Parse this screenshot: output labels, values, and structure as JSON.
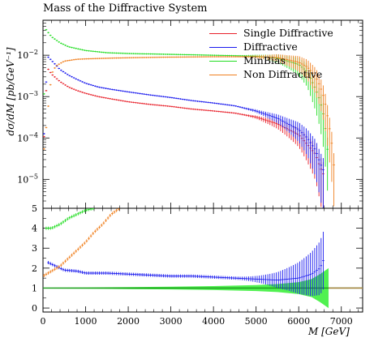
{
  "chart_data": [
    {
      "type": "line",
      "panel": "main",
      "title": "Mass of the Diffractive System",
      "ylabel": "dσ/dM [pb/GeV⁻¹]",
      "yscale": "log",
      "ylim": [
        2e-06,
        0.07
      ],
      "xlim": [
        0,
        7500
      ],
      "yticks": [
        {
          "v": 1e-05,
          "b": "10",
          "e": "−5"
        },
        {
          "v": 0.0001,
          "b": "10",
          "e": "−4"
        },
        {
          "v": 0.001,
          "b": "10",
          "e": "−3"
        },
        {
          "v": 0.01,
          "b": "10",
          "e": "−2"
        }
      ],
      "legend": {
        "position": "top-right"
      },
      "series": [
        {
          "name": "Single Diffractive",
          "color": "#e8202a",
          "x": [
            0,
            100,
            200,
            400,
            600,
            800,
            1000,
            1300,
            1600,
            2000,
            2500,
            3000,
            3500,
            4000,
            4500,
            5000,
            5500,
            6000,
            6200,
            6400,
            6500,
            6600
          ],
          "y": [
            3e-05,
            0.005,
            0.0035,
            0.0023,
            0.0017,
            0.0014,
            0.0012,
            0.001,
            0.00088,
            0.00075,
            0.00065,
            0.00058,
            0.0005,
            0.00045,
            0.0004,
            0.00032,
            0.00022,
            0.00012,
            7e-05,
            4e-05,
            2e-05,
            1.2e-05
          ]
        },
        {
          "name": "Diffractive",
          "color": "#1a1aee",
          "x": [
            0,
            100,
            200,
            400,
            600,
            800,
            1000,
            1300,
            1600,
            2000,
            2500,
            3000,
            3500,
            4000,
            4500,
            5000,
            5500,
            6000,
            6200,
            6400,
            6500,
            6600
          ],
          "y": [
            3e-05,
            0.0095,
            0.0075,
            0.0045,
            0.0033,
            0.0026,
            0.0021,
            0.0017,
            0.0015,
            0.0013,
            0.0011,
            0.00095,
            0.0008,
            0.0007,
            0.0006,
            0.00045,
            0.0003,
            0.00016,
            0.0001,
            5e-05,
            2.5e-05,
            1.5e-05
          ]
        },
        {
          "name": "MinBias",
          "color": "#22dd22",
          "x": [
            0,
            50,
            100,
            200,
            400,
            600,
            1000,
            1500,
            2000,
            3000,
            4000,
            5000,
            5500,
            6000,
            6200,
            6400,
            6500,
            6600,
            6700
          ],
          "y": [
            3e-05,
            0.045,
            0.038,
            0.028,
            0.02,
            0.016,
            0.013,
            0.0115,
            0.011,
            0.0105,
            0.01,
            0.0095,
            0.0085,
            0.006,
            0.004,
            0.0015,
            0.0008,
            0.0003,
            3e-05
          ]
        },
        {
          "name": "Non Diffractive",
          "color": "#f08020",
          "x": [
            0,
            200,
            300,
            500,
            800,
            1200,
            1600,
            2000,
            3000,
            4000,
            5000,
            5500,
            6000,
            6200,
            6400,
            6500,
            6600,
            6700,
            6800,
            6850
          ],
          "y": [
            3e-05,
            0.0035,
            0.0055,
            0.0072,
            0.008,
            0.0083,
            0.0085,
            0.0087,
            0.009,
            0.0092,
            0.0092,
            0.0088,
            0.0068,
            0.0052,
            0.003,
            0.0018,
            0.0009,
            0.00025,
            5e-05,
            1e-05
          ]
        }
      ]
    },
    {
      "type": "line",
      "panel": "ratio",
      "xlabel": "M [GeV]",
      "ylim": [
        -0.2,
        5
      ],
      "xlim": [
        0,
        7500
      ],
      "xticks": [
        0,
        1000,
        2000,
        3000,
        4000,
        5000,
        6000,
        7000
      ],
      "yticks": [
        0,
        1,
        2,
        3,
        4,
        5
      ],
      "reference": {
        "color": "#1a9a1a",
        "value": 1,
        "band_x": [
          0,
          1000,
          2000,
          3000,
          4000,
          5000,
          5500,
          6000,
          6300,
          6500,
          6700
        ],
        "band_half_width": [
          0.02,
          0.03,
          0.05,
          0.07,
          0.1,
          0.15,
          0.2,
          0.3,
          0.45,
          0.7,
          1.0
        ]
      },
      "series": [
        {
          "name": "Diffractive",
          "color": "#1a1aee",
          "x": [
            100,
            300,
            500,
            800,
            1000,
            1500,
            2000,
            2500,
            3000,
            3500,
            4000,
            4500,
            5000,
            5500,
            6000,
            6300,
            6500,
            6600
          ],
          "y": [
            2.3,
            2.1,
            1.9,
            1.85,
            1.75,
            1.75,
            1.7,
            1.65,
            1.6,
            1.6,
            1.55,
            1.5,
            1.45,
            1.4,
            1.5,
            1.7,
            2.0,
            2.5
          ]
        },
        {
          "name": "MinBias",
          "color": "#22dd22",
          "x": [
            50,
            200,
            400,
            600,
            800,
            1000,
            1200
          ],
          "y": [
            4.0,
            4.0,
            4.2,
            4.5,
            4.7,
            4.9,
            5.0
          ]
        },
        {
          "name": "Non Diffractive",
          "color": "#f08020",
          "x": [
            0,
            200,
            400,
            600,
            800,
            1000,
            1200,
            1400,
            1600,
            1800
          ],
          "y": [
            1.6,
            1.85,
            2.1,
            2.5,
            2.9,
            3.3,
            3.8,
            4.2,
            4.7,
            5.0
          ]
        }
      ]
    }
  ]
}
